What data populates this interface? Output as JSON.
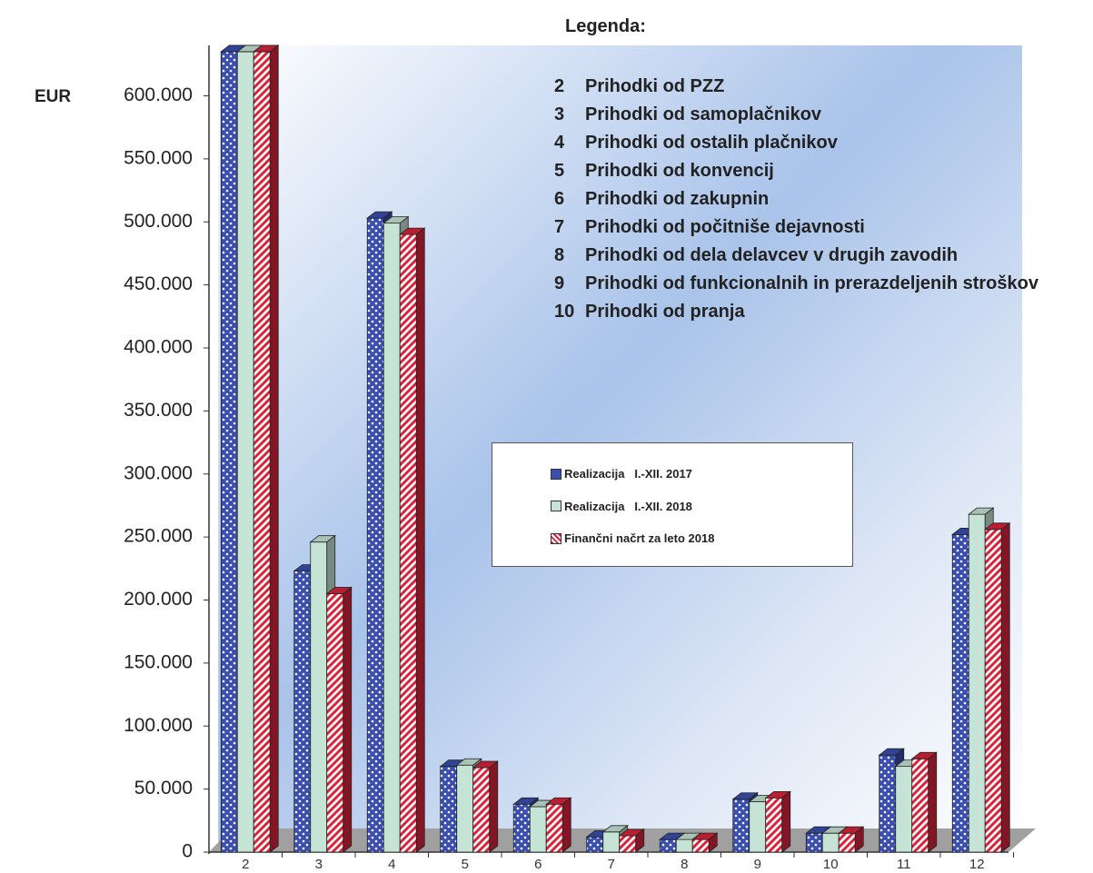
{
  "chart_data": {
    "type": "bar3d",
    "y_axis_label": "EUR",
    "legend_title": "Legenda:",
    "category_legend": [
      {
        "number": "2",
        "text": "Prihodki od PZZ"
      },
      {
        "number": "3",
        "text": "Prihodki od samoplačnikov"
      },
      {
        "number": "4",
        "text": "Prihodki od ostalih plačnikov"
      },
      {
        "number": "5",
        "text": "Prihodki od konvencij"
      },
      {
        "number": "6",
        "text": "Prihodki od zakupnin"
      },
      {
        "number": "7",
        "text": "Prihodki od počitniše dejavnosti"
      },
      {
        "number": "8",
        "text": "Prihodki od dela delavcev v drugih zavodih"
      },
      {
        "number": "9",
        "text": "Prihodki od funkcionalnih in prerazdeljenih stroškov"
      },
      {
        "number": "10",
        "text": "Prihodki od pranja"
      }
    ],
    "categories": [
      "2",
      "3",
      "4",
      "5",
      "6",
      "7",
      "8",
      "9",
      "10",
      "11",
      "12"
    ],
    "series": [
      {
        "name": "Realizacija   I.-XII. 2017",
        "color": "#3a4fb0",
        "pattern": "dots",
        "values": [
          635000,
          223000,
          503000,
          68000,
          38000,
          12000,
          10000,
          42000,
          15000,
          77000,
          252000
        ]
      },
      {
        "name": "Realizacija   I.-XII. 2018",
        "color": "#c6e4d6",
        "pattern": "solid",
        "values": [
          635000,
          246000,
          499000,
          69000,
          36000,
          16000,
          10000,
          40000,
          15000,
          68000,
          268000
        ]
      },
      {
        "name": "Finančni načrt za leto 2018",
        "color": "#d8243c",
        "pattern": "stripes",
        "values": [
          635000,
          205000,
          490000,
          67000,
          38000,
          13000,
          10000,
          43000,
          15000,
          74000,
          256000
        ]
      }
    ],
    "ylim": [
      0,
      640000
    ],
    "yticks": [
      0,
      {
        "value": 50000,
        "label": "50.000"
      },
      {
        "value": 100000,
        "label": "100.000"
      },
      {
        "value": 150000,
        "label": "150.000"
      },
      {
        "value": 200000,
        "label": "200.000"
      },
      {
        "value": 250000,
        "label": "250.000"
      },
      {
        "value": 300000,
        "label": "300.000"
      },
      {
        "value": 350000,
        "label": "350.000"
      },
      {
        "value": 400000,
        "label": "400.000"
      },
      {
        "value": 450000,
        "label": "450.000"
      },
      {
        "value": 500000,
        "label": "500.000"
      },
      {
        "value": 550000,
        "label": "550.000"
      },
      {
        "value": 600000,
        "label": "600.000"
      }
    ]
  }
}
